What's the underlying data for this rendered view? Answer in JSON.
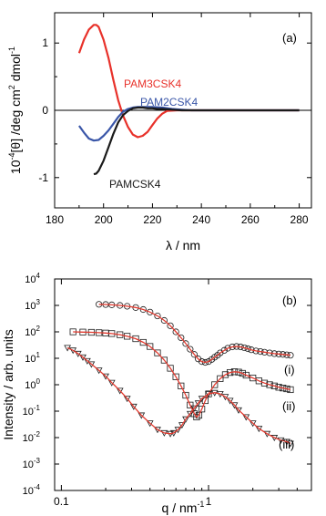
{
  "colors": {
    "red": "#e8312a",
    "blue": "#3a56a8",
    "black": "#1a1a1a",
    "fit": "#e23a2f"
  },
  "chart_data": [
    {
      "type": "line",
      "panel_label": "(a)",
      "xlabel": "λ / nm",
      "ylabel_parts": {
        "a": "10",
        "b": "-4",
        "c": "[θ] /deg cm",
        "d": "2",
        "e": " dmol",
        "f": "-1"
      },
      "xlim": [
        180,
        285
      ],
      "ylim": [
        -1.45,
        1.45
      ],
      "xticks": [
        180,
        200,
        220,
        240,
        260,
        280
      ],
      "yticks": [
        -1,
        0,
        1
      ],
      "series": [
        {
          "name": "PAM3CSK4",
          "color": "red",
          "x": [
            190,
            192,
            194,
            196,
            197,
            198,
            200,
            202,
            204,
            206,
            208,
            210,
            212,
            214,
            216,
            218,
            220,
            222,
            224,
            226,
            230,
            235,
            240,
            250,
            260,
            270,
            280
          ],
          "y": [
            0.85,
            1.05,
            1.2,
            1.27,
            1.27,
            1.24,
            1.05,
            0.78,
            0.45,
            0.15,
            -0.08,
            -0.25,
            -0.36,
            -0.4,
            -0.38,
            -0.32,
            -0.22,
            -0.12,
            -0.05,
            -0.01,
            0.0,
            0.0,
            0.0,
            0.0,
            0.0,
            0.0,
            0.0
          ]
        },
        {
          "name": "PAM2CSK4",
          "color": "blue",
          "x": [
            190,
            192,
            194,
            196,
            198,
            200,
            202,
            204,
            206,
            208,
            210,
            212,
            214,
            216,
            218,
            220,
            224,
            228,
            232,
            236,
            240,
            250,
            260,
            270,
            280
          ],
          "y": [
            -0.23,
            -0.33,
            -0.42,
            -0.45,
            -0.44,
            -0.38,
            -0.3,
            -0.2,
            -0.1,
            -0.02,
            0.02,
            0.04,
            0.05,
            0.05,
            0.05,
            0.05,
            0.04,
            0.02,
            0.01,
            0.0,
            0.0,
            0.0,
            0.0,
            0.0,
            0.0
          ]
        },
        {
          "name": "PAMCSK4",
          "color": "black",
          "x": [
            196,
            197,
            198,
            200,
            202,
            204,
            206,
            208,
            210,
            212,
            214,
            216,
            218,
            220,
            222,
            224,
            228,
            232,
            236,
            240,
            250,
            260,
            270,
            280
          ],
          "y": [
            -0.95,
            -0.94,
            -0.9,
            -0.75,
            -0.55,
            -0.35,
            -0.18,
            -0.07,
            -0.01,
            0.03,
            0.04,
            0.04,
            0.03,
            0.03,
            0.02,
            0.02,
            0.01,
            0.0,
            0.0,
            0.0,
            0.0,
            0.0,
            0.0,
            0.0
          ]
        }
      ],
      "series_labels": [
        "PAM3CSK4",
        "PAM2CSK4",
        "PAMCSK4"
      ]
    },
    {
      "type": "scatter",
      "panel_label": "(b)",
      "xlabel": "q / nm",
      "xlabel_sup": "-1",
      "ylabel": "Intensity / arb. units",
      "xscale": "log",
      "yscale": "log",
      "xlim": [
        0.09,
        5
      ],
      "ylim": [
        0.0001,
        10000
      ],
      "xtick_labels": [
        "0.1",
        "1"
      ],
      "ytick_base": "10",
      "ytick_exponents": [
        "-4",
        "-3",
        "-2",
        "-1",
        "0",
        "1",
        "2",
        "3",
        "4"
      ],
      "series": [
        {
          "name": "(i)",
          "marker": "circle",
          "q": [
            0.18,
            0.2,
            0.22,
            0.25,
            0.28,
            0.32,
            0.36,
            0.4,
            0.45,
            0.5,
            0.55,
            0.6,
            0.65,
            0.7,
            0.75,
            0.8,
            0.85,
            0.9,
            0.95,
            1.0,
            1.05,
            1.1,
            1.15,
            1.2,
            1.28,
            1.35,
            1.45,
            1.55,
            1.65,
            1.75,
            1.85,
            1.95,
            2.1,
            2.25,
            2.4,
            2.6,
            2.8,
            3.0,
            3.2,
            3.4,
            3.6
          ],
          "I": [
            1100,
            1080,
            1050,
            1000,
            930,
            830,
            700,
            560,
            400,
            270,
            170,
            100,
            60,
            36,
            22,
            14,
            9.5,
            7.5,
            7,
            7.5,
            9,
            11,
            13,
            16,
            20,
            24,
            27,
            28,
            27,
            25,
            23,
            21,
            19,
            18,
            17,
            16,
            15,
            14.5,
            14,
            13.5,
            13
          ]
        },
        {
          "name": "(ii)",
          "marker": "square",
          "q": [
            0.12,
            0.14,
            0.16,
            0.18,
            0.2,
            0.22,
            0.25,
            0.28,
            0.32,
            0.36,
            0.4,
            0.45,
            0.5,
            0.55,
            0.6,
            0.65,
            0.7,
            0.75,
            0.8,
            0.83,
            0.86,
            0.9,
            0.95,
            1.0,
            1.1,
            1.2,
            1.3,
            1.4,
            1.5,
            1.6,
            1.7,
            1.8,
            2.0,
            2.2,
            2.4,
            2.6,
            2.8,
            3.0,
            3.2,
            3.4,
            3.6
          ],
          "I": [
            100,
            98,
            96,
            93,
            90,
            86,
            78,
            68,
            55,
            40,
            28,
            16,
            8.5,
            4.2,
            2,
            0.9,
            0.4,
            0.17,
            0.08,
            0.06,
            0.07,
            0.12,
            0.25,
            0.45,
            1.0,
            1.7,
            2.4,
            2.9,
            3.1,
            3.0,
            2.7,
            2.3,
            1.8,
            1.4,
            1.15,
            1.0,
            0.9,
            0.8,
            0.75,
            0.7,
            0.65
          ]
        },
        {
          "name": "(iii)",
          "marker": "triangle-down",
          "q": [
            0.11,
            0.12,
            0.13,
            0.14,
            0.15,
            0.16,
            0.18,
            0.2,
            0.22,
            0.25,
            0.28,
            0.31,
            0.35,
            0.4,
            0.45,
            0.5,
            0.55,
            0.58,
            0.62,
            0.66,
            0.7,
            0.75,
            0.8,
            0.85,
            0.9,
            1.0,
            1.1,
            1.2,
            1.3,
            1.4,
            1.5,
            1.6,
            1.8,
            2.0,
            2.2,
            2.5,
            2.8,
            3.1,
            3.4,
            3.6
          ],
          "I": [
            25,
            20,
            15,
            11,
            8,
            6,
            3.5,
            2.1,
            1.2,
            0.6,
            0.3,
            0.15,
            0.07,
            0.035,
            0.02,
            0.015,
            0.014,
            0.015,
            0.02,
            0.03,
            0.05,
            0.08,
            0.13,
            0.2,
            0.3,
            0.45,
            0.5,
            0.45,
            0.35,
            0.25,
            0.17,
            0.11,
            0.06,
            0.035,
            0.022,
            0.014,
            0.01,
            0.008,
            0.007,
            0.006
          ]
        }
      ]
    }
  ]
}
